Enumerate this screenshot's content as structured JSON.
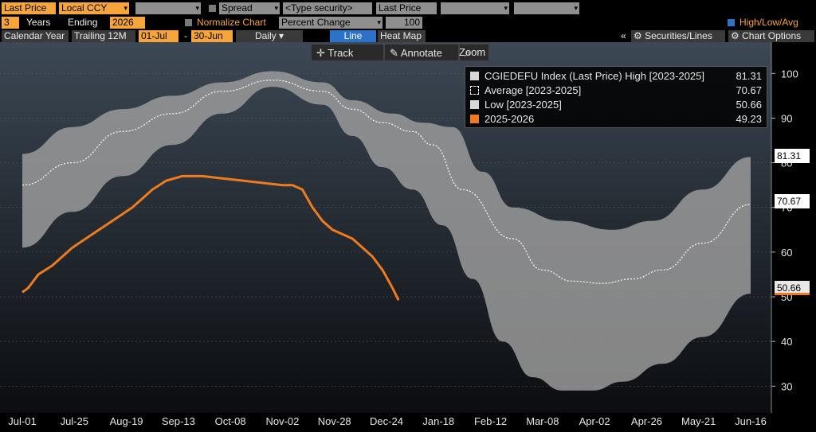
{
  "toolbar": {
    "field1": "Last Price",
    "field2": "Local CCY",
    "spread_label": "Spread",
    "type_security": "<Type security>",
    "field_price": "Last Price",
    "years_value": "3",
    "years_label": "Years",
    "ending_label": "Ending",
    "ending_value": "2026",
    "normalize_label": "Normalize Chart",
    "percent_change": "Percent Change",
    "base_value": "100",
    "hla_label": "High/Low/Avg",
    "calendar_year": "Calendar Year",
    "trailing": "Trailing 12M",
    "from_date": "01-Jul",
    "dash": "-",
    "to_date": "30-Jun",
    "frequency": "Daily",
    "line_tab": "Line",
    "heatmap_tab": "Heat Map",
    "collapse": "«",
    "securities_lines": "Securities/Lines",
    "chart_options": "Chart Options",
    "track": "Track",
    "annotate": "Annotate",
    "zoom": "Zoom"
  },
  "legend": [
    {
      "label": "CGIEDEFU Index (Last Price) High [2023-2025]",
      "value": "81.31"
    },
    {
      "label": "Average  [2023-2025]",
      "value": "70.67"
    },
    {
      "label": "Low  [2023-2025]",
      "value": "50.66"
    },
    {
      "label": "2025-2026",
      "value": "49.23"
    }
  ],
  "value_tags": {
    "high": "81.31",
    "avg": "70.67",
    "low": "50.66"
  },
  "colors": {
    "band": "#9a9a9a",
    "current": "#f07a1e",
    "average": "#ffffff",
    "accent": "#f5a53a"
  },
  "chart_data": {
    "type": "area",
    "x_ticks": [
      "Jul-01",
      "Jul-25",
      "Aug-19",
      "Sep-13",
      "Oct-08",
      "Nov-02",
      "Nov-28",
      "Dec-24",
      "Jan-18",
      "Feb-12",
      "Mar-08",
      "Apr-02",
      "Apr-26",
      "May-21",
      "Jun-16"
    ],
    "y_ticks": [
      30,
      40,
      50,
      60,
      70,
      80,
      90,
      100
    ],
    "ylim": [
      24,
      107
    ],
    "xlim": [
      0,
      364
    ],
    "high": [
      [
        0,
        82
      ],
      [
        25,
        88
      ],
      [
        50,
        92
      ],
      [
        75,
        95
      ],
      [
        100,
        98
      ],
      [
        125,
        100.5
      ],
      [
        150,
        98
      ],
      [
        165,
        94
      ],
      [
        185,
        91
      ],
      [
        200,
        89
      ],
      [
        215,
        88
      ],
      [
        230,
        78
      ],
      [
        245,
        70
      ],
      [
        270,
        67
      ],
      [
        295,
        65
      ],
      [
        315,
        67
      ],
      [
        340,
        74
      ],
      [
        364,
        81.31
      ]
    ],
    "average": [
      [
        0,
        75
      ],
      [
        25,
        80
      ],
      [
        50,
        87
      ],
      [
        75,
        91
      ],
      [
        100,
        96
      ],
      [
        125,
        98.5
      ],
      [
        150,
        96
      ],
      [
        165,
        92
      ],
      [
        180,
        89
      ],
      [
        195,
        87
      ],
      [
        205,
        84
      ],
      [
        220,
        74
      ],
      [
        245,
        63
      ],
      [
        260,
        56
      ],
      [
        275,
        53.5
      ],
      [
        290,
        53
      ],
      [
        305,
        54
      ],
      [
        320,
        56
      ],
      [
        340,
        62
      ],
      [
        364,
        70.67
      ]
    ],
    "low": [
      [
        0,
        61
      ],
      [
        25,
        69
      ],
      [
        50,
        77
      ],
      [
        75,
        84
      ],
      [
        100,
        91
      ],
      [
        125,
        97
      ],
      [
        150,
        93
      ],
      [
        165,
        86
      ],
      [
        180,
        79
      ],
      [
        195,
        74
      ],
      [
        210,
        66
      ],
      [
        225,
        54
      ],
      [
        240,
        40
      ],
      [
        255,
        32
      ],
      [
        270,
        29
      ],
      [
        285,
        29
      ],
      [
        300,
        31
      ],
      [
        320,
        35
      ],
      [
        340,
        41
      ],
      [
        364,
        50.66
      ]
    ],
    "current": [
      [
        0,
        51
      ],
      [
        3,
        52
      ],
      [
        8,
        55
      ],
      [
        15,
        57
      ],
      [
        25,
        61
      ],
      [
        35,
        64
      ],
      [
        45,
        67
      ],
      [
        55,
        70
      ],
      [
        60,
        72
      ],
      [
        65,
        74
      ],
      [
        72,
        76
      ],
      [
        80,
        77
      ],
      [
        90,
        77
      ],
      [
        100,
        76.5
      ],
      [
        110,
        76
      ],
      [
        120,
        75.5
      ],
      [
        130,
        75
      ],
      [
        135,
        75
      ],
      [
        140,
        74
      ],
      [
        145,
        70
      ],
      [
        150,
        67
      ],
      [
        155,
        65
      ],
      [
        160,
        64
      ],
      [
        165,
        63
      ],
      [
        170,
        61
      ],
      [
        175,
        59
      ],
      [
        180,
        56
      ],
      [
        185,
        52
      ],
      [
        188,
        49.23
      ]
    ]
  }
}
